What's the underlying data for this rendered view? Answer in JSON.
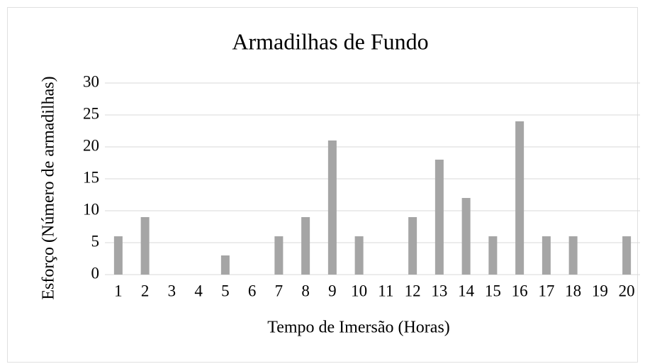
{
  "chart_data": {
    "type": "bar",
    "title": "Armadilhas de Fundo",
    "x_label": "Tempo de Imersão (Horas)",
    "y_label": "Esforço (Número de armadilhas)",
    "categories": [
      "1",
      "2",
      "3",
      "4",
      "5",
      "6",
      "7",
      "8",
      "9",
      "10",
      "11",
      "12",
      "13",
      "14",
      "15",
      "16",
      "17",
      "18",
      "19",
      "20"
    ],
    "values": [
      6,
      9,
      0,
      0,
      3,
      0,
      6,
      9,
      21,
      6,
      0,
      9,
      18,
      12,
      6,
      24,
      6,
      6,
      0,
      6
    ],
    "color": "#a5a5a5",
    "ylim": [
      0,
      30
    ],
    "yticks": [
      0,
      5,
      10,
      15,
      20,
      25,
      30
    ],
    "grid": true
  }
}
